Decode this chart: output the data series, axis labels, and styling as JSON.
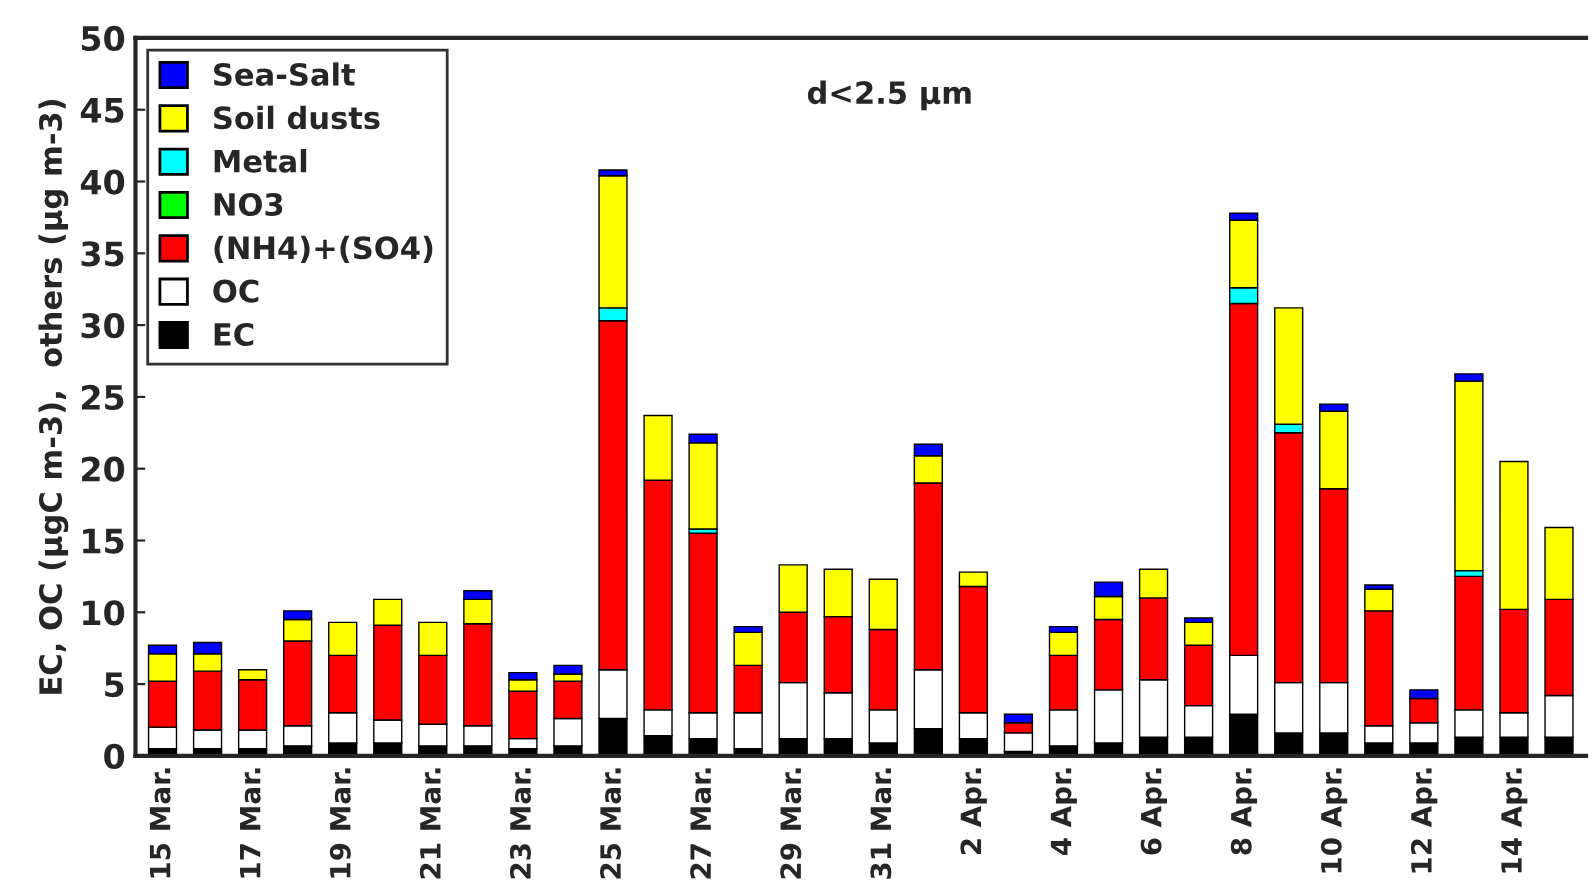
{
  "chart_data": {
    "type": "bar",
    "stacked": true,
    "ylabel": "EC, OC (μgC m-3),  others (μg m-3)",
    "annotations": [
      "d<2.5 μm"
    ],
    "categories": [
      "15 Mar.",
      null,
      "17 Mar.",
      null,
      "19 Mar.",
      null,
      "21 Mar.",
      null,
      "23 Mar.",
      null,
      "25 Mar.",
      null,
      "27 Mar.",
      null,
      "29 Mar.",
      null,
      "31 Mar.",
      null,
      "2 Apr.",
      null,
      "4 Apr.",
      null,
      "6 Apr.",
      null,
      "8 Apr.",
      null,
      "10 Apr.",
      null,
      "12 Apr.",
      null,
      "14 Apr.",
      null
    ],
    "series": [
      {
        "name": "EC",
        "color": "#000000",
        "values": [
          0.5,
          0.5,
          0.5,
          0.7,
          0.9,
          0.9,
          0.7,
          0.7,
          0.5,
          0.7,
          2.6,
          1.4,
          1.2,
          0.5,
          1.2,
          1.2,
          0.9,
          1.9,
          1.2,
          0.3,
          0.7,
          0.9,
          1.3,
          1.3,
          2.9,
          1.6,
          1.6,
          0.9,
          0.9,
          1.3,
          1.3,
          1.3
        ]
      },
      {
        "name": "OC",
        "color": "#ffffff",
        "values": [
          1.5,
          1.3,
          1.3,
          1.4,
          2.1,
          1.6,
          1.5,
          1.4,
          0.7,
          1.9,
          3.4,
          1.8,
          1.8,
          2.5,
          3.9,
          3.2,
          2.3,
          4.1,
          1.8,
          1.3,
          2.5,
          3.7,
          4.0,
          2.2,
          4.1,
          3.5,
          3.5,
          1.2,
          1.4,
          1.9,
          1.7,
          2.9
        ]
      },
      {
        "name": "(NH4)+(SO4)",
        "color": "#ff0000",
        "values": [
          3.2,
          4.1,
          3.5,
          5.9,
          4.0,
          6.6,
          4.8,
          7.1,
          3.3,
          2.6,
          24.3,
          16.0,
          12.5,
          3.3,
          4.9,
          5.3,
          5.6,
          13.0,
          8.8,
          0.7,
          3.8,
          4.9,
          5.7,
          4.2,
          24.5,
          17.4,
          13.5,
          8.0,
          1.7,
          9.3,
          7.2,
          6.7
        ]
      },
      {
        "name": "NO3",
        "color": "#00ff00",
        "values": [
          0,
          0,
          0,
          0,
          0,
          0,
          0,
          0,
          0,
          0,
          0,
          0,
          0,
          0,
          0,
          0,
          0,
          0,
          0,
          0,
          0,
          0,
          0,
          0,
          0,
          0,
          0,
          0,
          0,
          0,
          0,
          0
        ]
      },
      {
        "name": "Metal",
        "color": "#00ffff",
        "values": [
          0,
          0,
          0,
          0,
          0,
          0,
          0,
          0,
          0,
          0,
          0.9,
          0,
          0.3,
          0,
          0,
          0,
          0,
          0,
          0,
          0,
          0,
          0,
          0,
          0,
          1.1,
          0.6,
          0,
          0,
          0,
          0.4,
          0,
          0
        ]
      },
      {
        "name": "Soil dusts",
        "color": "#ffff00",
        "values": [
          1.9,
          1.2,
          0.7,
          1.5,
          2.3,
          1.8,
          2.3,
          1.7,
          0.8,
          0.5,
          9.2,
          4.5,
          6.0,
          2.3,
          3.3,
          3.3,
          3.5,
          1.9,
          1.0,
          0,
          1.6,
          1.6,
          2.0,
          1.6,
          4.7,
          8.1,
          5.4,
          1.5,
          0,
          13.2,
          10.3,
          5.0
        ]
      },
      {
        "name": "Sea-Salt",
        "color": "#0000ff",
        "values": [
          0.6,
          0.8,
          0,
          0.6,
          0,
          0,
          0,
          0.6,
          0.5,
          0.6,
          0.4,
          0,
          0.6,
          0.4,
          0,
          0,
          0,
          0.8,
          0,
          0.6,
          0.4,
          1.0,
          0,
          0.3,
          0.5,
          0,
          0.5,
          0.3,
          0.6,
          0.5,
          0,
          0
        ]
      }
    ],
    "ylim": [
      0,
      50
    ],
    "yticks": [
      0,
      5,
      10,
      15,
      20,
      25,
      30,
      35,
      40,
      45,
      50
    ],
    "grid": false,
    "legend": "top left"
  }
}
